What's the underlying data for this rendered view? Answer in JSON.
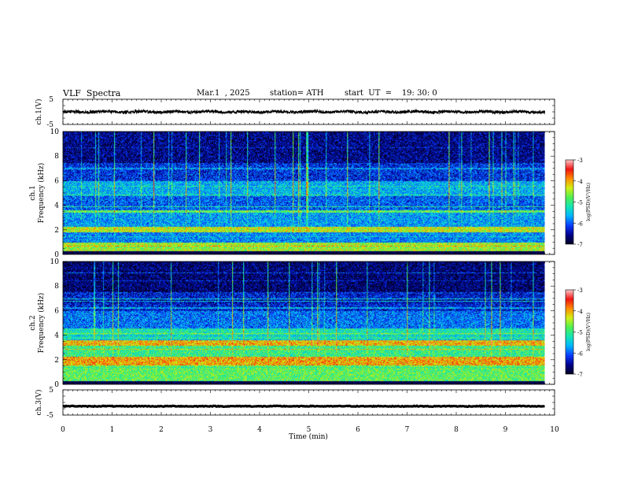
{
  "header": {
    "title": "VLF  Spectra",
    "date": "Mar.1  , 2025",
    "station": "station= ATH",
    "start": "start  UT  =    19: 30: 0"
  },
  "colors": {
    "colormap": [
      "#000020",
      "#00008c",
      "#0a3cff",
      "#00b4ff",
      "#14e6b4",
      "#50f050",
      "#d2f014",
      "#ff8c00",
      "#f01414",
      "#ffc8c8"
    ]
  },
  "chart_data": [
    {
      "type": "line",
      "panel": "ch1-waveform",
      "ylabel": "ch.1(V)",
      "yticks": [
        "5",
        "-5"
      ],
      "ylim": [
        -5,
        5
      ],
      "xlim": [
        0,
        10
      ],
      "series": [
        {
          "x_range": [
            0,
            9.8
          ],
          "approx_level": 0.0,
          "approx_amplitude": 0.6,
          "color": "#000000"
        }
      ]
    },
    {
      "type": "heatmap",
      "panel": "ch1-spectrogram",
      "ylabel": "ch.1\nFrequency  (kHz)",
      "yticks": [
        "0",
        "2",
        "4",
        "6",
        "8",
        "10"
      ],
      "ylim": [
        0,
        10
      ],
      "xlim": [
        0,
        10
      ],
      "data_end_min": 9.8,
      "colorbar": {
        "label": "log(PSD)(V²/Hz)",
        "ticks": [
          "-3",
          "-4",
          "-5",
          "-6",
          "-7"
        ],
        "range": [
          -7,
          -3
        ]
      },
      "bands": [
        {
          "from_khz": 0,
          "to_khz": 0.3,
          "log_psd": -7
        },
        {
          "from_khz": 0.3,
          "to_khz": 1.0,
          "log_psd": -4.5
        },
        {
          "from_khz": 1.0,
          "to_khz": 1.8,
          "log_psd": -5.8
        },
        {
          "from_khz": 1.8,
          "to_khz": 2.3,
          "log_psd": -4.4
        },
        {
          "from_khz": 2.3,
          "to_khz": 3.4,
          "log_psd": -5.7
        },
        {
          "from_khz": 3.4,
          "to_khz": 3.6,
          "log_psd": -4.8
        },
        {
          "from_khz": 3.6,
          "to_khz": 4.8,
          "log_psd": -6.0
        },
        {
          "from_khz": 4.8,
          "to_khz": 6.0,
          "log_psd": -5.6
        },
        {
          "from_khz": 6.0,
          "to_khz": 7.5,
          "log_psd": -6.2
        },
        {
          "from_khz": 7.5,
          "to_khz": 10.0,
          "log_psd": -6.6
        }
      ]
    },
    {
      "type": "heatmap",
      "panel": "ch2-spectrogram",
      "ylabel": "ch.2\nFrequency  (kHz)",
      "yticks": [
        "0",
        "2",
        "4",
        "6",
        "8",
        "10"
      ],
      "ylim": [
        0,
        10
      ],
      "xlim": [
        0,
        10
      ],
      "data_end_min": 9.8,
      "colorbar": {
        "label": "log(PSD)(V²/Hz)",
        "ticks": [
          "-3",
          "-4",
          "-5",
          "-6",
          "-7"
        ],
        "range": [
          -7,
          -3
        ]
      },
      "bands": [
        {
          "from_khz": 0,
          "to_khz": 0.3,
          "log_psd": -7
        },
        {
          "from_khz": 0.3,
          "to_khz": 1.6,
          "log_psd": -4.8
        },
        {
          "from_khz": 1.6,
          "to_khz": 2.3,
          "log_psd": -4.0
        },
        {
          "from_khz": 2.3,
          "to_khz": 3.2,
          "log_psd": -5.0
        },
        {
          "from_khz": 3.2,
          "to_khz": 3.6,
          "log_psd": -4.1
        },
        {
          "from_khz": 3.6,
          "to_khz": 4.6,
          "log_psd": -5.2
        },
        {
          "from_khz": 4.6,
          "to_khz": 6.0,
          "log_psd": -5.9
        },
        {
          "from_khz": 6.0,
          "to_khz": 7.5,
          "log_psd": -6.3
        },
        {
          "from_khz": 7.5,
          "to_khz": 10.0,
          "log_psd": -6.7
        }
      ]
    },
    {
      "type": "line",
      "panel": "ch3-waveform",
      "ylabel": "ch.3(V)",
      "yticks": [
        "5",
        "-5"
      ],
      "ylim": [
        -5,
        5
      ],
      "xlim": [
        0,
        10
      ],
      "xlabel": "Time  (min)",
      "xticks": [
        "0",
        "1",
        "2",
        "3",
        "4",
        "5",
        "6",
        "7",
        "8",
        "9",
        "10"
      ],
      "series": [
        {
          "x_range": [
            0,
            9.8
          ],
          "approx_level": -1.5,
          "approx_amplitude": 0.15,
          "color": "#000000"
        }
      ]
    }
  ]
}
